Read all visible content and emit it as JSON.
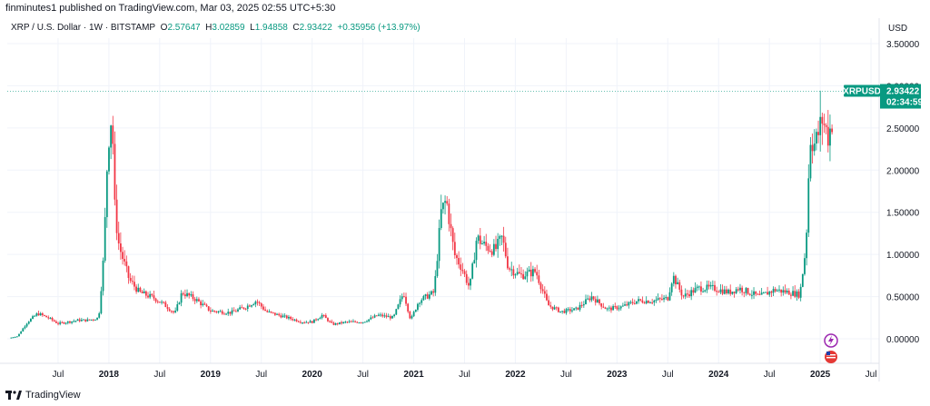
{
  "header": {
    "published": "finminutes1 published on TradingView.com, Mar 03, 2025 02:55 UTC+5:30"
  },
  "legend": {
    "symbol": "XRP / U.S. Dollar · 1W · BITSTAMP",
    "open_label": "O",
    "open": "2.57647",
    "high_label": "H",
    "high": "3.02859",
    "low_label": "L",
    "low": "1.94858",
    "close_label": "C",
    "close": "2.93422",
    "change": "+0.35956 (+13.97%)"
  },
  "currency": "USD",
  "price_tag": {
    "symbol": "XRPUSD",
    "price": "2.93422",
    "countdown": "02:34:59"
  },
  "footer": {
    "brand": "TradingView"
  },
  "colors": {
    "up": "#089981",
    "down": "#f23645",
    "grid": "#f0f3fa",
    "last_line": "#089981"
  },
  "chart_data": {
    "type": "candlestick",
    "title": "XRP / U.S. Dollar · 1W · BITSTAMP",
    "ylim": [
      -0.2,
      3.6
    ],
    "y_ticks": [
      0.0,
      0.5,
      1.0,
      1.5,
      2.0,
      2.5,
      3.0,
      3.5
    ],
    "y_tick_labels": [
      "0.00000",
      "0.50000",
      "1.00000",
      "1.50000",
      "2.00000",
      "2.50000",
      "3.00000",
      "3.50000"
    ],
    "x_tick_labels": [
      "Jul",
      "2018",
      "Jul",
      "2019",
      "Jul",
      "2020",
      "Jul",
      "2021",
      "Jul",
      "2022",
      "Jul",
      "2023",
      "Jul",
      "2024",
      "Jul",
      "2025",
      "Jul"
    ],
    "xlim": [
      2017.0,
      2025.58
    ],
    "x_tick_positions": [
      2017.5,
      2018.0,
      2018.5,
      2019.0,
      2019.5,
      2020.0,
      2020.5,
      2021.0,
      2021.5,
      2022.0,
      2022.5,
      2023.0,
      2023.5,
      2024.0,
      2024.5,
      2025.0,
      2025.5
    ],
    "last_price": 2.93422,
    "anchors": [
      [
        2017.02,
        0.01
      ],
      [
        2017.1,
        0.03
      ],
      [
        2017.2,
        0.2
      ],
      [
        2017.3,
        0.3
      ],
      [
        2017.4,
        0.25
      ],
      [
        2017.5,
        0.18
      ],
      [
        2017.6,
        0.2
      ],
      [
        2017.7,
        0.22
      ],
      [
        2017.8,
        0.22
      ],
      [
        2017.9,
        0.25
      ],
      [
        2017.95,
        1.0
      ],
      [
        2017.99,
        2.3
      ],
      [
        2018.03,
        2.7
      ],
      [
        2018.06,
        1.5
      ],
      [
        2018.1,
        1.1
      ],
      [
        2018.15,
        0.9
      ],
      [
        2018.2,
        0.7
      ],
      [
        2018.3,
        0.55
      ],
      [
        2018.45,
        0.48
      ],
      [
        2018.55,
        0.4
      ],
      [
        2018.65,
        0.3
      ],
      [
        2018.72,
        0.55
      ],
      [
        2018.85,
        0.47
      ],
      [
        2019.0,
        0.33
      ],
      [
        2019.2,
        0.31
      ],
      [
        2019.35,
        0.38
      ],
      [
        2019.45,
        0.45
      ],
      [
        2019.55,
        0.32
      ],
      [
        2019.7,
        0.27
      ],
      [
        2019.9,
        0.2
      ],
      [
        2020.0,
        0.2
      ],
      [
        2020.1,
        0.28
      ],
      [
        2020.2,
        0.17
      ],
      [
        2020.35,
        0.2
      ],
      [
        2020.5,
        0.2
      ],
      [
        2020.65,
        0.28
      ],
      [
        2020.8,
        0.25
      ],
      [
        2020.9,
        0.55
      ],
      [
        2020.97,
        0.22
      ],
      [
        2021.05,
        0.45
      ],
      [
        2021.2,
        0.55
      ],
      [
        2021.27,
        1.5
      ],
      [
        2021.32,
        1.65
      ],
      [
        2021.4,
        1.0
      ],
      [
        2021.47,
        0.85
      ],
      [
        2021.55,
        0.6
      ],
      [
        2021.62,
        1.2
      ],
      [
        2021.7,
        1.1
      ],
      [
        2021.8,
        1.05
      ],
      [
        2021.87,
        1.2
      ],
      [
        2021.93,
        0.85
      ],
      [
        2022.05,
        0.75
      ],
      [
        2022.2,
        0.8
      ],
      [
        2022.32,
        0.4
      ],
      [
        2022.45,
        0.32
      ],
      [
        2022.6,
        0.35
      ],
      [
        2022.75,
        0.5
      ],
      [
        2022.9,
        0.35
      ],
      [
        2023.05,
        0.38
      ],
      [
        2023.2,
        0.45
      ],
      [
        2023.35,
        0.45
      ],
      [
        2023.5,
        0.48
      ],
      [
        2023.55,
        0.75
      ],
      [
        2023.65,
        0.5
      ],
      [
        2023.8,
        0.6
      ],
      [
        2023.95,
        0.6
      ],
      [
        2024.1,
        0.55
      ],
      [
        2024.2,
        0.6
      ],
      [
        2024.4,
        0.5
      ],
      [
        2024.55,
        0.58
      ],
      [
        2024.7,
        0.55
      ],
      [
        2024.8,
        0.52
      ],
      [
        2024.86,
        1.1
      ],
      [
        2024.9,
        2.4
      ],
      [
        2024.95,
        2.3
      ],
      [
        2025.02,
        2.6
      ],
      [
        2025.08,
        2.4
      ],
      [
        2025.12,
        2.6
      ],
      [
        2025.13,
        2.93422
      ]
    ]
  }
}
